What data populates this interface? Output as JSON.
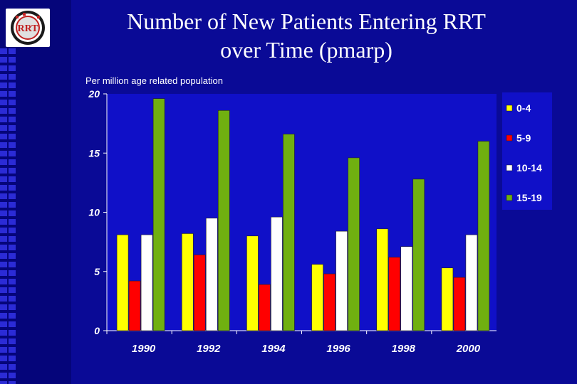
{
  "title_line1": "Number of New Patients Entering RRT",
  "title_line2": "over Time (pmarp)",
  "logo_icon": "rrt-emblem-icon",
  "colors": {
    "background": "#0a0a96",
    "plot_bg": "#1010c8",
    "0-4": "#ffff00",
    "5-9": "#ff0000",
    "10-14": "#ffffff",
    "15-19": "#70b010"
  },
  "chart_data": {
    "type": "bar",
    "title": "Number of New Patients Entering RRT over Time (pmarp)",
    "ylabel": "Per million age related population",
    "xlabel": "",
    "categories": [
      "1990",
      "1992",
      "1994",
      "1996",
      "1998",
      "2000"
    ],
    "series": [
      {
        "name": "0-4",
        "values": [
          8.1,
          8.2,
          8.0,
          5.6,
          8.6,
          5.3
        ]
      },
      {
        "name": "5-9",
        "values": [
          4.2,
          6.4,
          3.9,
          4.8,
          6.2,
          4.5
        ]
      },
      {
        "name": "10-14",
        "values": [
          8.1,
          9.5,
          9.6,
          8.4,
          7.1,
          8.1
        ]
      },
      {
        "name": "15-19",
        "values": [
          19.6,
          18.6,
          16.6,
          14.6,
          12.8,
          16.0
        ]
      }
    ],
    "ylim": [
      0,
      20
    ],
    "yticks": [
      "0",
      "5",
      "10",
      "15",
      "20"
    ],
    "grid": false,
    "legend": "right"
  }
}
